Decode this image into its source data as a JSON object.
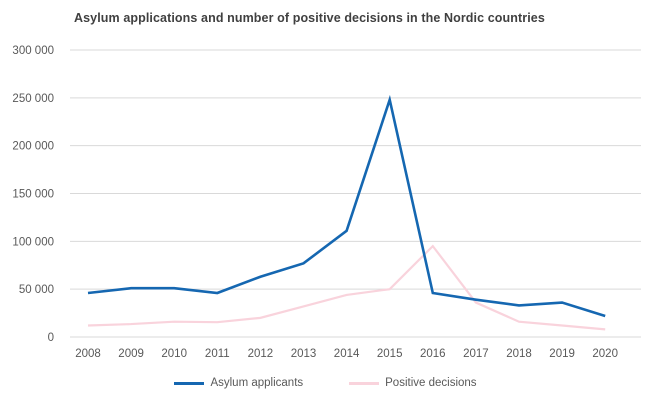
{
  "title": "Asylum applications and number of positive decisions in the Nordic countries",
  "chart_data": {
    "type": "line",
    "x": [
      "2008",
      "2009",
      "2010",
      "2011",
      "2012",
      "2013",
      "2014",
      "2015",
      "2016",
      "2017",
      "2018",
      "2019",
      "2020"
    ],
    "series": [
      {
        "name": "Asylum applicants",
        "color": "#1567b1",
        "stroke_width": 2.6,
        "values": [
          46000,
          51000,
          51000,
          46000,
          63000,
          77000,
          111000,
          248000,
          46000,
          39000,
          33000,
          36000,
          22000
        ]
      },
      {
        "name": "Positive decisions",
        "color": "#f9d3dc",
        "stroke_width": 2.2,
        "values": [
          12000,
          13500,
          16000,
          15500,
          20000,
          32000,
          44000,
          50000,
          95000,
          36000,
          16000,
          12000,
          8000
        ]
      }
    ],
    "ylim": [
      0,
      300000
    ],
    "ytick_step": 50000,
    "ytick_labels": [
      "0",
      "50 000",
      "100 000",
      "150 000",
      "200 000",
      "250 000",
      "300 000"
    ],
    "xlabel": "",
    "ylabel": "",
    "grid": true,
    "legend_position": "bottom",
    "style": {
      "gridline_color": "#d9d9d9",
      "tick_label_color": "#595959",
      "title_color": "#404040",
      "background": "#ffffff"
    }
  }
}
